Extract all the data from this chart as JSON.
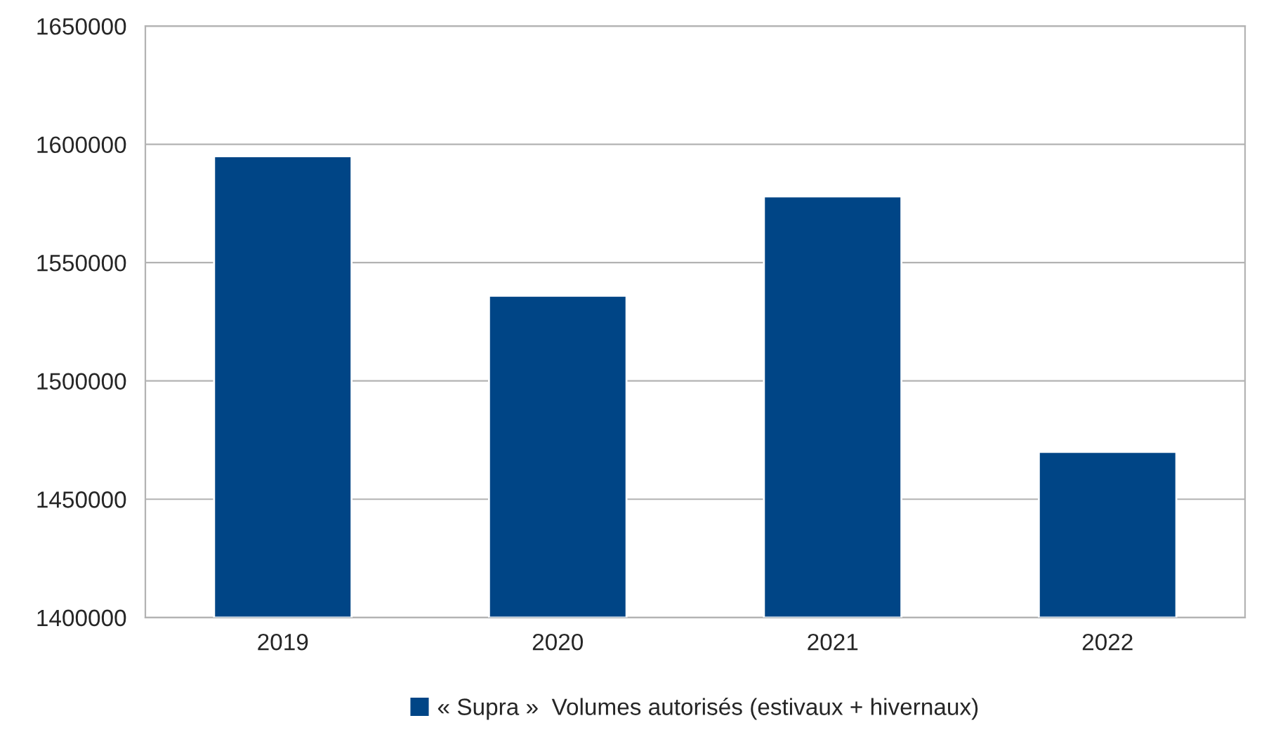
{
  "chart_data": {
    "type": "bar",
    "categories": [
      "2019",
      "2020",
      "2021",
      "2022"
    ],
    "series": [
      {
        "name": "« Supra »  Volumes autorisés (estivaux + hivernaux)",
        "color": "#004586",
        "values": [
          1595000,
          1536000,
          1578000,
          1470000
        ]
      }
    ],
    "ylim": [
      1400000,
      1650000
    ],
    "yticks": [
      1400000,
      1450000,
      1500000,
      1550000,
      1600000,
      1650000
    ],
    "grid": "y",
    "legend": "bottom"
  }
}
